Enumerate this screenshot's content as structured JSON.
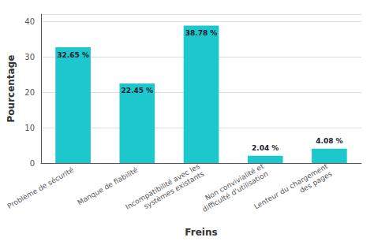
{
  "chart_data": {
    "type": "bar",
    "categories": [
      "Problème de sécurité",
      "Manque de fiabilité",
      "Incompatibilité avec les\nsystèmes existants",
      "Non convivialité et\ndifficulté d'utilisation",
      "Lenteur du chargement\ndes pages"
    ],
    "values": [
      32.65,
      22.45,
      38.78,
      2.04,
      4.08
    ],
    "value_labels": [
      "32.65 %",
      "22.45 %",
      "38.78 %",
      "2.04 %",
      "4.08 %"
    ],
    "color": "#1DC8CD",
    "xlabel": "Freins",
    "ylabel": "Pourcentage",
    "ylim": [
      0,
      42
    ],
    "yticks": [
      0,
      10,
      20,
      30,
      40
    ],
    "grid": true,
    "data_labels": true
  }
}
